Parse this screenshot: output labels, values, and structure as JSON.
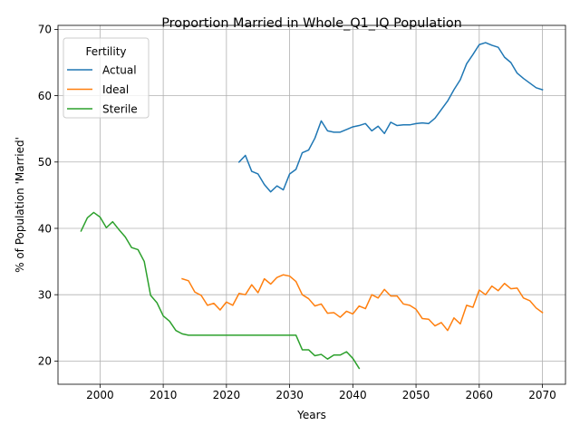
{
  "chart_data": {
    "type": "line",
    "title": "Proportion Married in Whole_Q1_IQ Population",
    "xlabel": "Years",
    "ylabel": "% of Population 'Married'",
    "xlim": [
      1993.35,
      2073.65
    ],
    "ylim": [
      16.5,
      70.6
    ],
    "xticks": [
      2000,
      2010,
      2020,
      2030,
      2040,
      2050,
      2060,
      2070
    ],
    "yticks": [
      20,
      30,
      40,
      50,
      60,
      70
    ],
    "grid": true,
    "legend": {
      "title": "Fertility",
      "position": "top-left"
    },
    "series": [
      {
        "name": "Actual",
        "color": "#1f77b4",
        "x": [
          2022,
          2023,
          2024,
          2025,
          2026,
          2027,
          2028,
          2029,
          2030,
          2031,
          2032,
          2033,
          2034,
          2035,
          2036,
          2037,
          2038,
          2039,
          2040,
          2041,
          2042,
          2043,
          2044,
          2045,
          2046,
          2047,
          2048,
          2049,
          2050,
          2051,
          2052,
          2053,
          2054,
          2055,
          2056,
          2057,
          2058,
          2059,
          2060,
          2061,
          2062,
          2063,
          2064,
          2065,
          2066,
          2067,
          2068,
          2069,
          2070
        ],
        "y": [
          50.0,
          51.0,
          48.6,
          48.2,
          46.6,
          45.5,
          46.4,
          45.8,
          48.2,
          48.9,
          51.4,
          51.8,
          53.6,
          56.2,
          54.7,
          54.5,
          54.5,
          54.9,
          55.3,
          55.5,
          55.8,
          54.7,
          55.4,
          54.3,
          56.0,
          55.5,
          55.6,
          55.6,
          55.8,
          55.9,
          55.8,
          56.6,
          57.9,
          59.2,
          60.9,
          62.4,
          64.8,
          66.2,
          67.7,
          68.0,
          67.6,
          67.3,
          65.8,
          65.0,
          63.4,
          62.6,
          61.9,
          61.2,
          60.9
        ]
      },
      {
        "name": "Ideal",
        "color": "#ff7f0e",
        "x": [
          2013,
          2014,
          2015,
          2016,
          2017,
          2018,
          2019,
          2020,
          2021,
          2022,
          2023,
          2024,
          2025,
          2026,
          2027,
          2028,
          2029,
          2030,
          2031,
          2032,
          2033,
          2034,
          2035,
          2036,
          2037,
          2038,
          2039,
          2040,
          2041,
          2042,
          2043,
          2044,
          2045,
          2046,
          2047,
          2048,
          2049,
          2050,
          2051,
          2052,
          2053,
          2054,
          2055,
          2056,
          2057,
          2058,
          2059,
          2060,
          2061,
          2062,
          2063,
          2064,
          2065,
          2066,
          2067,
          2068,
          2069,
          2070
        ],
        "y": [
          32.4,
          32.1,
          30.4,
          29.9,
          28.4,
          28.7,
          27.7,
          28.9,
          28.4,
          30.2,
          30.0,
          31.5,
          30.3,
          32.4,
          31.6,
          32.6,
          33.0,
          32.8,
          32.0,
          30.0,
          29.4,
          28.3,
          28.6,
          27.2,
          27.3,
          26.6,
          27.5,
          27.1,
          28.3,
          27.9,
          30.0,
          29.5,
          30.8,
          29.8,
          29.8,
          28.6,
          28.4,
          27.8,
          26.4,
          26.3,
          25.3,
          25.8,
          24.6,
          26.5,
          25.6,
          28.4,
          28.1,
          30.7,
          30.0,
          31.3,
          30.6,
          31.7,
          30.9,
          31.0,
          29.5,
          29.1,
          28.0,
          27.3
        ]
      },
      {
        "name": "Sterile",
        "color": "#2ca02c",
        "x": [
          1997,
          1998,
          1999,
          2000,
          2001,
          2002,
          2003,
          2004,
          2005,
          2006,
          2007,
          2008,
          2009,
          2010,
          2011,
          2012,
          2013,
          2014,
          2015,
          2016,
          2017,
          2018,
          2019,
          2020,
          2021,
          2022,
          2023,
          2024,
          2025,
          2026,
          2027,
          2028,
          2029,
          2030,
          2031,
          2032,
          2033,
          2034,
          2035,
          2036,
          2037,
          2038,
          2039,
          2040,
          2041
        ],
        "y": [
          39.6,
          41.6,
          42.4,
          41.7,
          40.1,
          41.0,
          39.8,
          38.7,
          37.1,
          36.8,
          35.0,
          29.9,
          28.8,
          26.8,
          26.0,
          24.6,
          24.1,
          23.9,
          23.9,
          23.9,
          23.9,
          23.9,
          23.9,
          23.9,
          23.9,
          23.9,
          23.9,
          23.9,
          23.9,
          23.9,
          23.9,
          23.9,
          23.9,
          23.9,
          23.9,
          21.7,
          21.7,
          20.8,
          21.0,
          20.3,
          20.9,
          20.9,
          21.4,
          20.4,
          18.9
        ]
      }
    ]
  }
}
